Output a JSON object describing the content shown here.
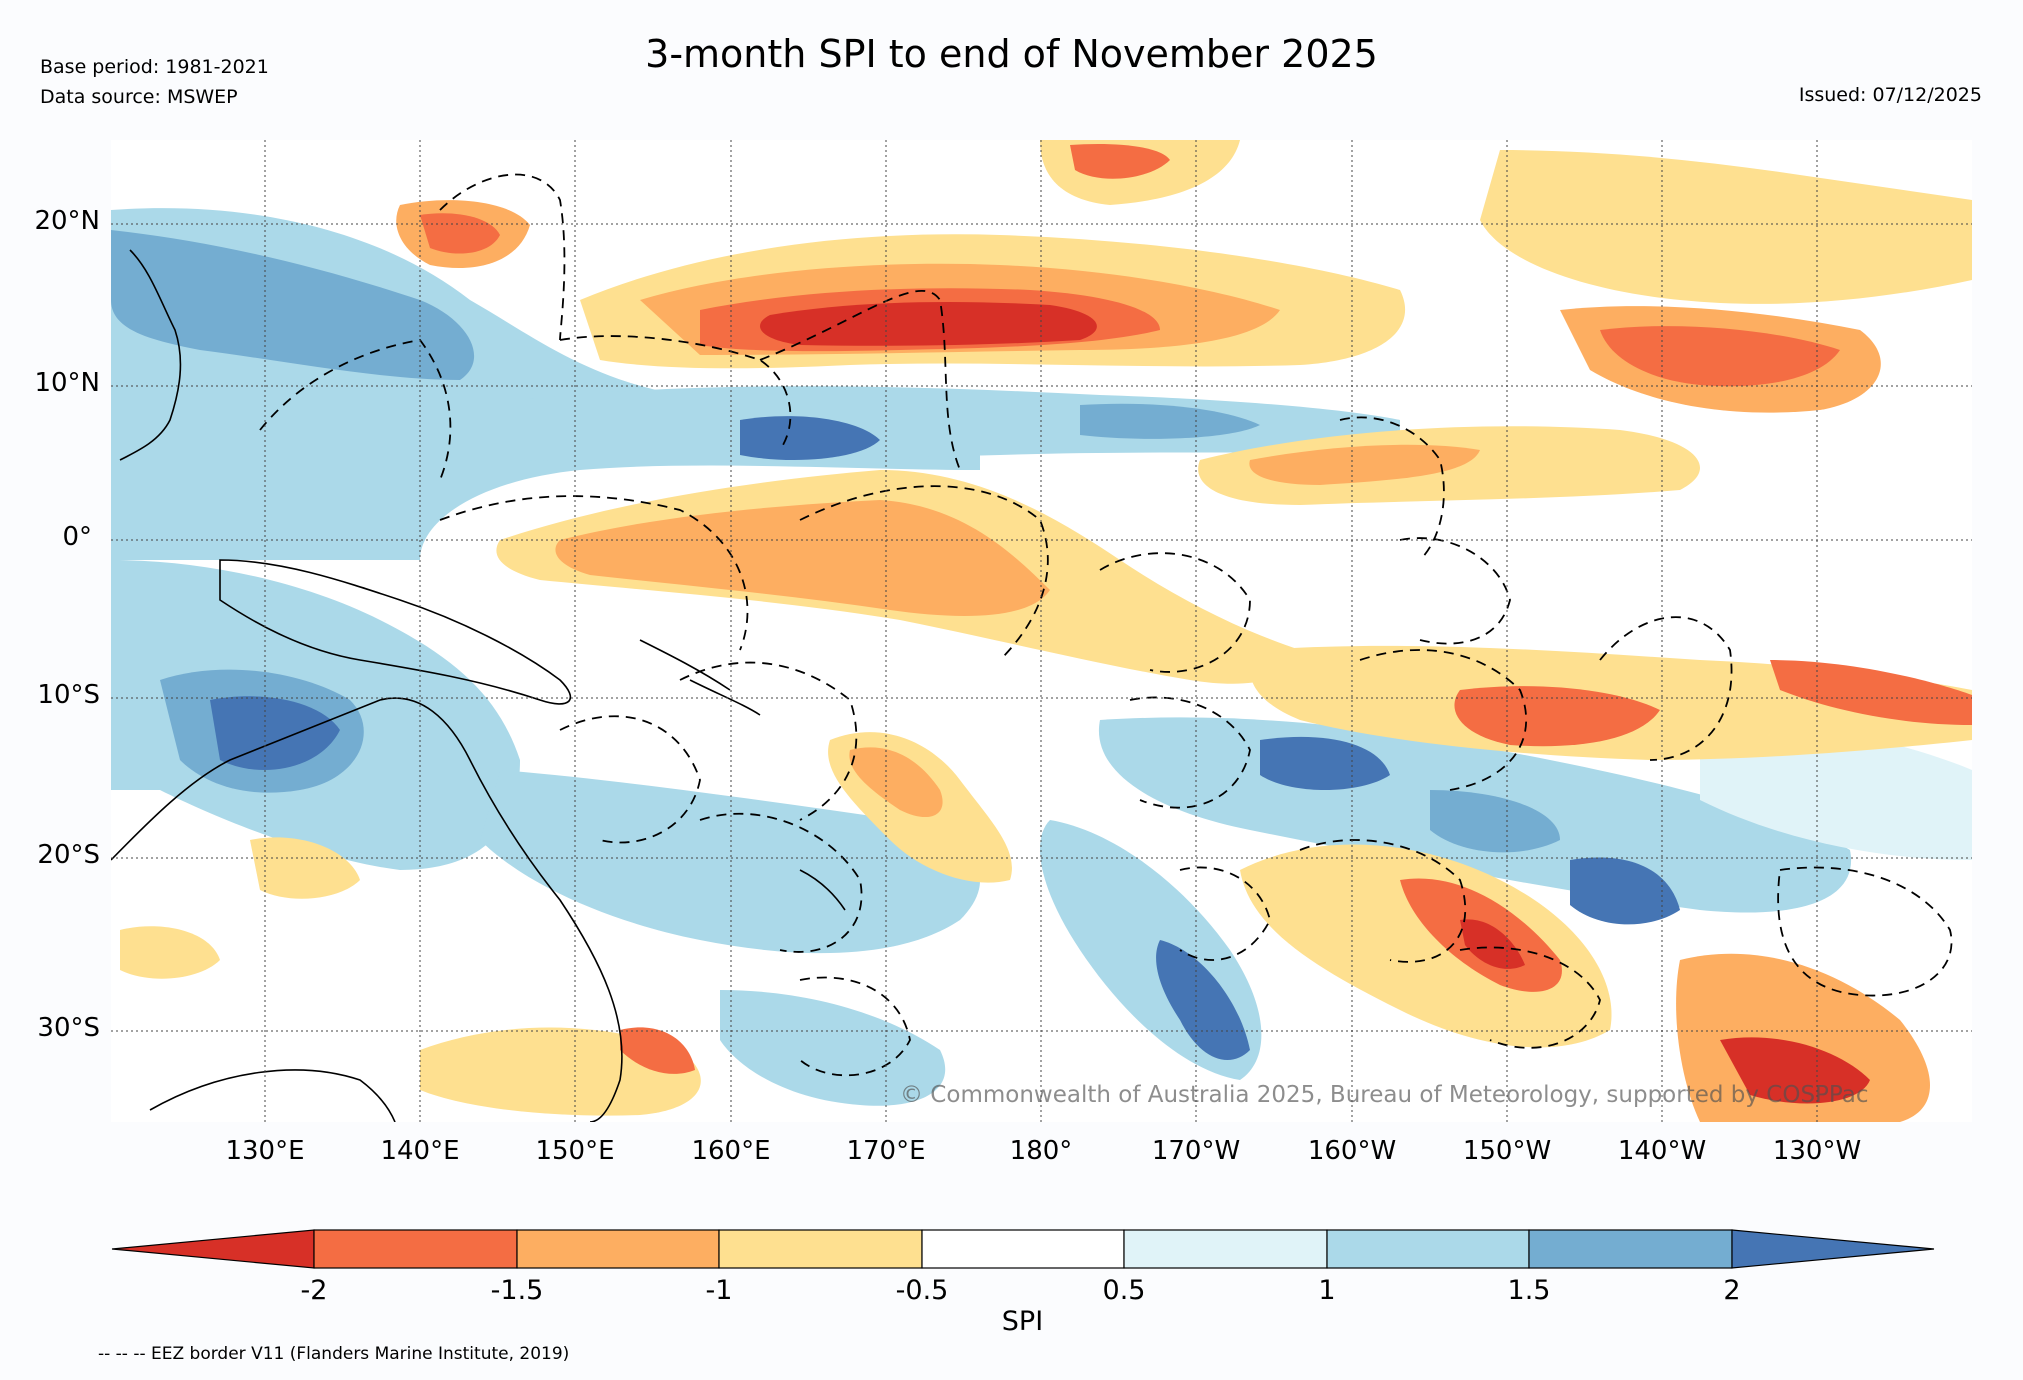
{
  "header": {
    "title": "3-month SPI to end of November 2025",
    "base_period": "Base period: 1981-2021",
    "data_source": "Data source: MSWEP",
    "issued": "Issued: 07/12/2025"
  },
  "map": {
    "lat_labels": [
      "20°N",
      "10°N",
      "0°",
      "10°S",
      "20°S",
      "30°S"
    ],
    "lon_labels": [
      "130°E",
      "140°E",
      "150°E",
      "160°E",
      "170°E",
      "180°",
      "170°W",
      "160°W",
      "150°W",
      "140°W",
      "130°W"
    ],
    "copyright": "© Commonwealth of Australia 2025, Bureau of Meteorology, supported by COSPPac",
    "colors": {
      "extreme_dry": "#d73027",
      "very_dry": "#f46d43",
      "dry": "#fdae61",
      "slightly_dry": "#fee090",
      "slightly_wet": "#e0f3f8",
      "wet": "#abd9e9",
      "very_wet": "#74add1",
      "extreme_wet": "#4575b4"
    }
  },
  "colorbar": {
    "label": "SPI",
    "ticks": [
      "-2",
      "-1.5",
      "-1",
      "-0.5",
      "0.5",
      "1",
      "1.5",
      "2"
    ]
  },
  "footer": {
    "eez_note": "-- -- -- EEZ border V11 (Flanders Marine Institute, 2019)"
  }
}
